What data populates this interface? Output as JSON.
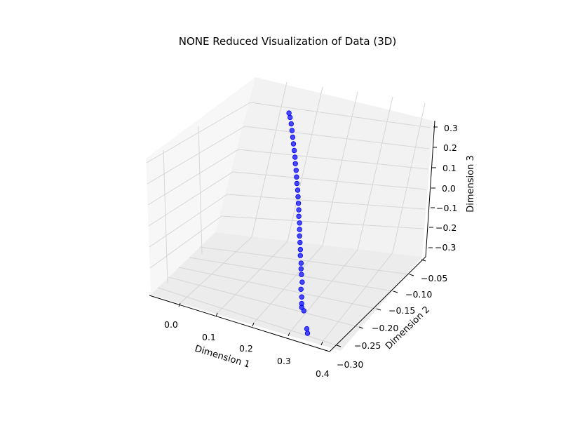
{
  "chart_data": {
    "type": "scatter3d",
    "title": "NONE Reduced Visualization of Data (3D)",
    "xlabel": "Dimension 1",
    "ylabel": "Dimension 2",
    "zlabel": "Dimension 3",
    "xticks": [
      "0.0",
      "0.1",
      "0.2",
      "0.3",
      "0.4"
    ],
    "yticks": [
      "−0.30",
      "−0.25",
      "−0.20",
      "−0.15",
      "−0.10",
      "−0.05"
    ],
    "zticks": [
      "−0.3",
      "−0.2",
      "−0.1",
      "0.0",
      "0.1",
      "0.2",
      "0.3"
    ],
    "grid": true,
    "colors": {
      "points": "#0000ff",
      "pane": "#f2f2f2",
      "grid": "#d6d6d6"
    },
    "series": [
      {
        "points": [
          [
            0.35,
            -0.29,
            -0.3
          ],
          [
            0.345,
            -0.287,
            -0.285
          ],
          [
            0.318,
            -0.268,
            -0.24
          ],
          [
            0.306,
            -0.262,
            -0.22
          ],
          [
            0.31,
            -0.266,
            -0.23
          ],
          [
            0.3,
            -0.256,
            -0.2
          ],
          [
            0.29,
            -0.248,
            -0.18
          ],
          [
            0.285,
            -0.24,
            -0.16
          ],
          [
            0.275,
            -0.232,
            -0.14
          ],
          [
            0.268,
            -0.226,
            -0.125
          ],
          [
            0.262,
            -0.22,
            -0.11
          ],
          [
            0.252,
            -0.212,
            -0.09
          ],
          [
            0.245,
            -0.205,
            -0.075
          ],
          [
            0.235,
            -0.196,
            -0.06
          ],
          [
            0.226,
            -0.188,
            -0.045
          ],
          [
            0.218,
            -0.18,
            -0.03
          ],
          [
            0.21,
            -0.172,
            -0.015
          ],
          [
            0.2,
            -0.164,
            0.0
          ],
          [
            0.192,
            -0.156,
            0.015
          ],
          [
            0.183,
            -0.148,
            0.03
          ],
          [
            0.174,
            -0.14,
            0.045
          ],
          [
            0.165,
            -0.132,
            0.06
          ],
          [
            0.155,
            -0.124,
            0.075
          ],
          [
            0.146,
            -0.116,
            0.09
          ],
          [
            0.137,
            -0.108,
            0.105
          ],
          [
            0.127,
            -0.1,
            0.12
          ],
          [
            0.118,
            -0.092,
            0.135
          ],
          [
            0.108,
            -0.084,
            0.15
          ],
          [
            0.098,
            -0.076,
            0.165
          ],
          [
            0.088,
            -0.068,
            0.18
          ],
          [
            0.078,
            -0.06,
            0.195
          ],
          [
            0.068,
            -0.052,
            0.21
          ],
          [
            0.058,
            -0.045,
            0.225
          ],
          [
            0.05,
            -0.04,
            0.235
          ]
        ]
      }
    ]
  }
}
